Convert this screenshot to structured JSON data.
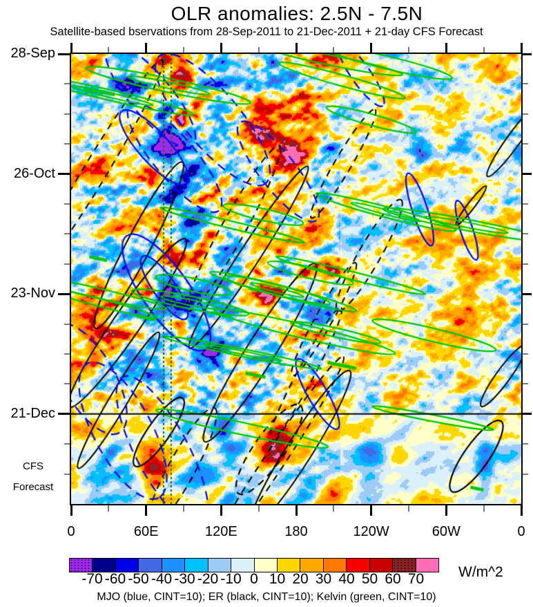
{
  "header": {
    "title": "OLR anomalies: 2.5N - 7.5N",
    "subtitle": "Satellite-based bservations from 28-Sep-2011 to 21-Dec-2011 + 21-day CFS Forecast"
  },
  "forecast_label": {
    "line1": "CFS",
    "line2": "Forecast"
  },
  "legend_text": "MJO (blue, CINT=10); ER (black, CINT=10); Kelvin (green, CINT=10)",
  "colorbar": {
    "unit": "W/m^2",
    "tick_labels": [
      "-70",
      "-60",
      "-50",
      "-40",
      "-30",
      "-20",
      "-10",
      "0",
      "10",
      "20",
      "30",
      "40",
      "50",
      "60",
      "70"
    ],
    "colors": [
      "#A028F0",
      "#00008B",
      "#0000E8",
      "#4169E1",
      "#1E90FF",
      "#00BFFF",
      "#9CCBF5",
      "#DCF0FA",
      "#FFFFC8",
      "#FFD700",
      "#FFA800",
      "#FF7800",
      "#F80000",
      "#C80000",
      "#8B2323",
      "#FF6EB4"
    ],
    "stippled_bins": [
      0,
      14
    ]
  },
  "chart_data": {
    "type": "heatmap",
    "subtype": "hovmoller-time-longitude",
    "title": "OLR anomalies: 2.5N - 7.5N",
    "subtitle": "Satellite-based bservations from 28-Sep-2011 to 21-Dec-2011 + 21-day CFS Forecast",
    "x_axis": {
      "range_deg": [
        0,
        360
      ],
      "ticks_deg": [
        0,
        60,
        120,
        180,
        240,
        300,
        360
      ],
      "tick_labels": [
        "0",
        "60E",
        "120E",
        "180",
        "120W",
        "60W",
        "0"
      ],
      "minor_ticks_deg": [
        30,
        90,
        150,
        210,
        270,
        330
      ]
    },
    "y_axis": {
      "direction": "time-downward",
      "start_date": "28-Sep-2011",
      "end_obs_date": "21-Dec-2011",
      "total_days": 105,
      "obs_end_day": 84,
      "forecast_days": 21,
      "major_ticks": [
        {
          "day": 0,
          "label": "28-Sep"
        },
        {
          "day": 28,
          "label": "26-Oct"
        },
        {
          "day": 56,
          "label": "23-Nov"
        },
        {
          "day": 84,
          "label": "21-Dec"
        }
      ],
      "minor_tick_days": [
        7,
        14,
        21,
        35,
        42,
        49,
        63,
        70,
        77,
        91,
        98
      ]
    },
    "colorbar": {
      "unit": "W/m^2",
      "levels": [
        -70,
        -60,
        -50,
        -40,
        -30,
        -20,
        -10,
        0,
        10,
        20,
        30,
        40,
        50,
        60,
        70
      ],
      "colors": [
        "#A028F0",
        "#00008B",
        "#0000E8",
        "#4169E1",
        "#1E90FF",
        "#00BFFF",
        "#9CCBF5",
        "#DCF0FA",
        "#FFFFC8",
        "#FFD700",
        "#FFA800",
        "#FF7800",
        "#F80000",
        "#C80000",
        "#8B2323",
        "#FF6EB4"
      ]
    },
    "overlays": [
      {
        "name": "MJO",
        "color_name": "blue",
        "color": "#0A0AE8",
        "cint": 10,
        "propagation": "eastward-slow"
      },
      {
        "name": "ER",
        "color_name": "black",
        "color": "#000000",
        "cint": 10,
        "propagation": "westward"
      },
      {
        "name": "Kelvin",
        "color_name": "green",
        "color": "#00C800",
        "cint": 10,
        "propagation": "eastward-fast"
      }
    ],
    "reference_lines": {
      "vertical_lon_deg": [
        74,
        80
      ],
      "color": "#0F6B0F",
      "style": "dotted"
    },
    "forecast_divider": {
      "day": 84,
      "label": "21-Dec",
      "color": "#000000"
    },
    "features": [
      {
        "lon_deg": 15,
        "day": 2,
        "approx_date": "30-Sep",
        "value_wm2": 32,
        "rx_deg": 10,
        "ry_days": 2.5
      },
      {
        "lon_deg": 60,
        "day": 4,
        "approx_date": "2-Oct",
        "value_wm2": 30,
        "rx_deg": 12,
        "ry_days": 2.5
      },
      {
        "lon_deg": 82,
        "day": 7,
        "approx_date": "5-Oct",
        "value_wm2": 58,
        "rx_deg": 7,
        "ry_days": 3.5
      },
      {
        "lon_deg": 45,
        "day": 7,
        "approx_date": "5-Oct",
        "value_wm2": -35,
        "rx_deg": 7,
        "ry_days": 2.5
      },
      {
        "lon_deg": 342,
        "day": 4,
        "approx_date": "2-Oct",
        "value_wm2": 42,
        "rx_deg": 8,
        "ry_days": 3
      },
      {
        "lon_deg": 205,
        "day": 12,
        "approx_date": "10-Oct",
        "value_wm2": -30,
        "rx_deg": 10,
        "ry_days": 3
      },
      {
        "lon_deg": 87,
        "day": 15,
        "approx_date": "13-Oct",
        "value_wm2": 70,
        "rx_deg": 3,
        "ry_days": 1.2
      },
      {
        "lon_deg": 78,
        "day": 21,
        "approx_date": "19-Oct",
        "value_wm2": -62,
        "rx_deg": 7,
        "ry_days": 4
      },
      {
        "lon_deg": 100,
        "day": 27,
        "approx_date": "25-Oct",
        "value_wm2": -45,
        "rx_deg": 8,
        "ry_days": 3
      },
      {
        "lon_deg": 155,
        "day": 20,
        "approx_date": "18-Oct",
        "value_wm2": 48,
        "rx_deg": 14,
        "ry_days": 3
      },
      {
        "lon_deg": 178,
        "day": 24,
        "approx_date": "22-Oct",
        "value_wm2": 42,
        "rx_deg": 9,
        "ry_days": 2.5
      },
      {
        "lon_deg": 280,
        "day": 23,
        "approx_date": "21-Oct",
        "value_wm2": -45,
        "rx_deg": 6,
        "ry_days": 2.5
      },
      {
        "lon_deg": 300,
        "day": 40,
        "approx_date": "7-Nov",
        "value_wm2": 26,
        "rx_deg": 14,
        "ry_days": 3.5
      },
      {
        "lon_deg": 255,
        "day": 55,
        "approx_date": "22-Nov",
        "value_wm2": -28,
        "rx_deg": 8,
        "ry_days": 3
      },
      {
        "lon_deg": 78,
        "day": 47,
        "approx_date": "14-Nov",
        "value_wm2": 60,
        "rx_deg": 6,
        "ry_days": 3
      },
      {
        "lon_deg": 76,
        "day": 55,
        "approx_date": "22-Nov",
        "value_wm2": -68,
        "rx_deg": 7,
        "ry_days": 3.5
      },
      {
        "lon_deg": 93,
        "day": 59,
        "approx_date": "26-Nov",
        "value_wm2": -52,
        "rx_deg": 7,
        "ry_days": 3
      },
      {
        "lon_deg": 88,
        "day": 63,
        "approx_date": "30-Nov",
        "value_wm2": 55,
        "rx_deg": 5,
        "ry_days": 2.5
      },
      {
        "lon_deg": 25,
        "day": 62,
        "approx_date": "29-Nov",
        "value_wm2": 38,
        "rx_deg": 14,
        "ry_days": 5
      },
      {
        "lon_deg": 5,
        "day": 49,
        "approx_date": "16-Nov",
        "value_wm2": -32,
        "rx_deg": 5,
        "ry_days": 4
      },
      {
        "lon_deg": 112,
        "day": 69,
        "approx_date": "6-Dec",
        "value_wm2": -48,
        "rx_deg": 8,
        "ry_days": 3.5
      },
      {
        "lon_deg": 150,
        "day": 56,
        "approx_date": "23-Nov",
        "value_wm2": 42,
        "rx_deg": 9,
        "ry_days": 3
      },
      {
        "lon_deg": 142,
        "day": 81,
        "approx_date": "18-Dec",
        "value_wm2": -45,
        "rx_deg": 7,
        "ry_days": 3
      },
      {
        "lon_deg": 122,
        "day": 87,
        "approx_date": "24-Dec",
        "value_wm2": -58,
        "rx_deg": 7,
        "ry_days": 3
      },
      {
        "lon_deg": 163,
        "day": 91,
        "approx_date": "28-Dec",
        "value_wm2": 58,
        "rx_deg": 8,
        "ry_days": 3
      },
      {
        "lon_deg": 62,
        "day": 95,
        "approx_date": "1-Jan",
        "value_wm2": 38,
        "rx_deg": 7,
        "ry_days": 4
      },
      {
        "lon_deg": 240,
        "day": 94,
        "approx_date": "31-Dec",
        "value_wm2": -34,
        "rx_deg": 10,
        "ry_days": 4
      },
      {
        "lon_deg": 330,
        "day": 96,
        "approx_date": "2-Jan",
        "value_wm2": -40,
        "rx_deg": 5,
        "ry_days": 5
      }
    ]
  }
}
